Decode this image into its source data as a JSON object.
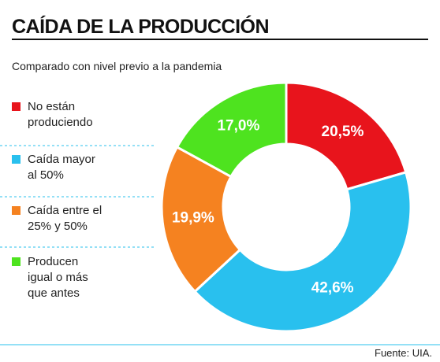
{
  "chart_data": {
    "type": "donut",
    "title": "CAÍDA DE LA PRODUCCIÓN",
    "subtitle": "Comparado con nivel previo a la pandemia",
    "categories": [
      "No están produciendo",
      "Caída mayor al 50%",
      "Caída entre el 25% y 50%",
      "Producen igual o más que antes"
    ],
    "values": [
      20.5,
      42.6,
      19.9,
      17.0
    ],
    "value_labels": [
      "20,5%",
      "42,6%",
      "19,9%",
      "17,0%"
    ],
    "colors": [
      "#e8141c",
      "#29c0ee",
      "#f58220",
      "#4ee31f"
    ],
    "source": "Fuente: UIA."
  }
}
